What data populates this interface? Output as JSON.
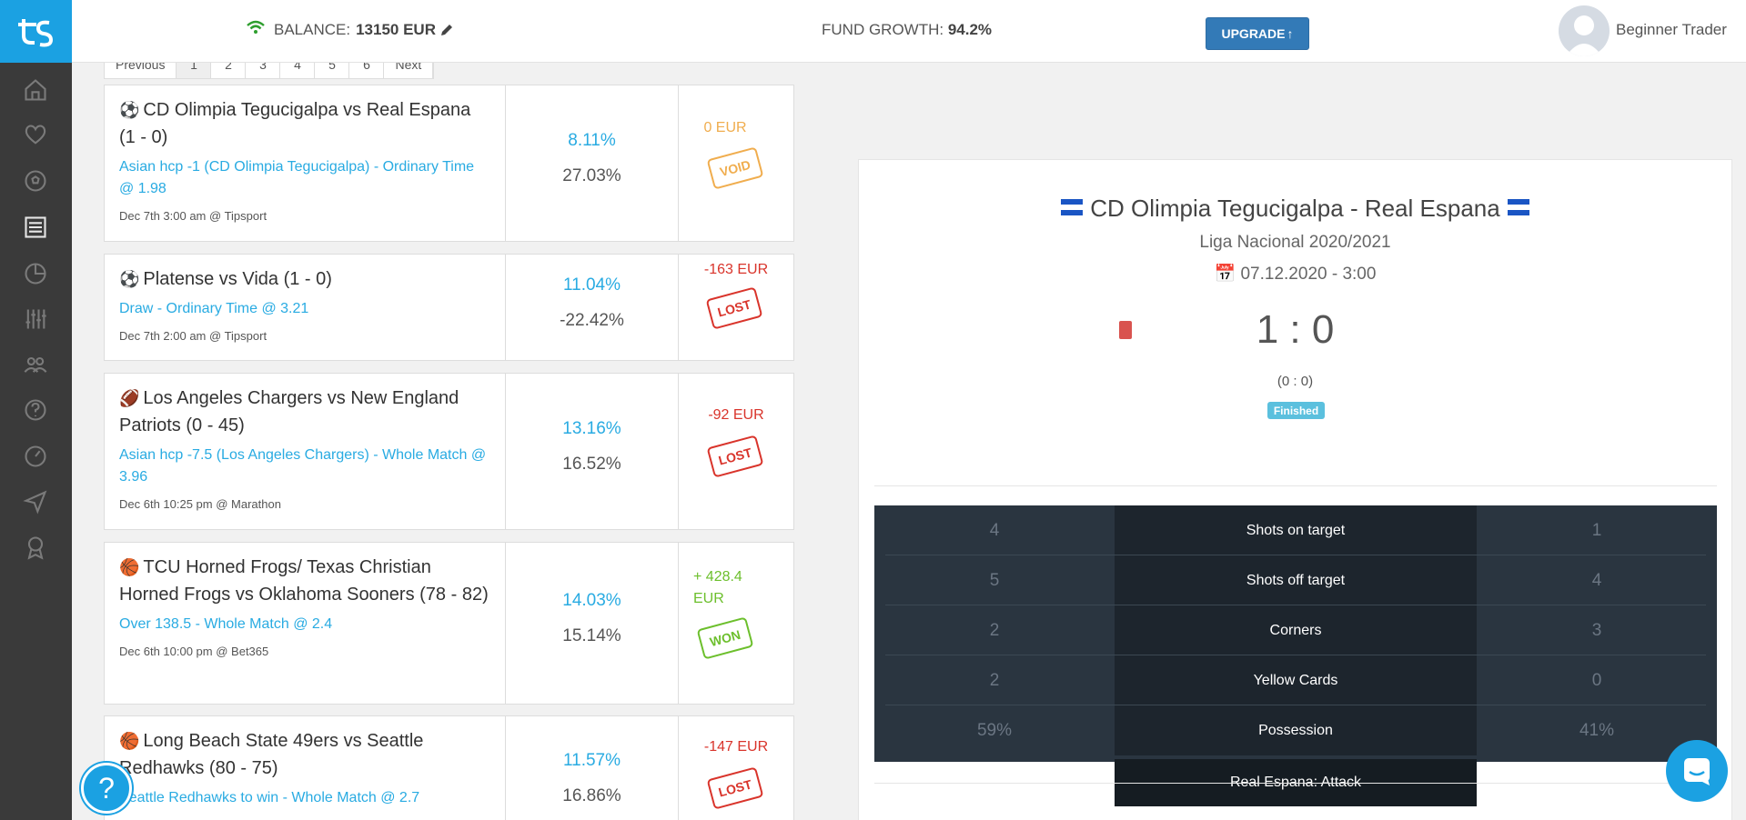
{
  "header": {
    "balance_label": "BALANCE:",
    "balance_value": "13150 EUR",
    "growth_label": "FUND GROWTH:",
    "growth_value": "94.2%",
    "upgrade_label": "UPGRADE",
    "user_name": "Beginner Trader"
  },
  "pager": {
    "prev": "Previous",
    "pages": [
      "1",
      "2",
      "3",
      "4",
      "5",
      "6"
    ],
    "next": "Next"
  },
  "bets": [
    {
      "match": "CD Olimpia Tegucigalpa vs Real Espana (1 - 0)",
      "pick": "Asian hcp -1 (CD Olimpia Tegucigalpa) - Ordinary Time @ 1.98",
      "meta": "Dec 7th 3:00 am @ Tipsport",
      "pct1": "8.11%",
      "pct2": "27.03%",
      "amount": "0 EUR",
      "status": "VOID"
    },
    {
      "match": "Platense vs Vida (1 - 0)",
      "pick": "Draw - Ordinary Time @ 3.21",
      "meta": "Dec 7th 2:00 am @ Tipsport",
      "pct1": "11.04%",
      "pct2": "-22.42%",
      "amount": "-163 EUR",
      "status": "LOST"
    },
    {
      "match": "Los Angeles Chargers vs New England Patriots (0 - 45)",
      "pick": "Asian hcp -7.5 (Los Angeles Chargers) - Whole Match @ 3.96",
      "meta": "Dec 6th 10:25 pm @ Marathon",
      "pct1": "13.16%",
      "pct2": "16.52%",
      "amount": "-92 EUR",
      "status": "LOST"
    },
    {
      "match": "TCU Horned Frogs/ Texas Christian Horned Frogs vs Oklahoma Sooners (78 - 82)",
      "pick": "Over 138.5 - Whole Match @ 2.4",
      "meta": "Dec 6th 10:00 pm @ Bet365",
      "pct1": "14.03%",
      "pct2": "15.14%",
      "amount": "+ 428.4 EUR",
      "status": "WON"
    },
    {
      "match": "Long Beach State 49ers vs Seattle Redhawks (80 - 75)",
      "pick": "Seattle Redhawks to win - Whole Match @ 2.7",
      "meta": "",
      "pct1": "11.57%",
      "pct2": "16.86%",
      "amount": "-147 EUR",
      "status": "LOST"
    }
  ],
  "detail": {
    "title": "CD Olimpia Tegucigalpa - Real Espana",
    "league": "Liga Nacional 2020/2021",
    "date": "07.12.2020 - 3:00",
    "score": "1 : 0",
    "halftime": "(0 : 0)",
    "badge": "Finished",
    "stats": [
      {
        "home": "4",
        "label": "Shots on target",
        "away": "1"
      },
      {
        "home": "5",
        "label": "Shots off target",
        "away": "4"
      },
      {
        "home": "2",
        "label": "Corners",
        "away": "3"
      },
      {
        "home": "2",
        "label": "Yellow Cards",
        "away": "0"
      },
      {
        "home": "59%",
        "label": "Possession",
        "away": "41%"
      }
    ],
    "attack": "Real Espana: Attack"
  },
  "colors": {
    "accent": "#1ba1e2",
    "won": "#6cbf2c",
    "lost": "#d9342b",
    "void": "#f0ad4e"
  }
}
